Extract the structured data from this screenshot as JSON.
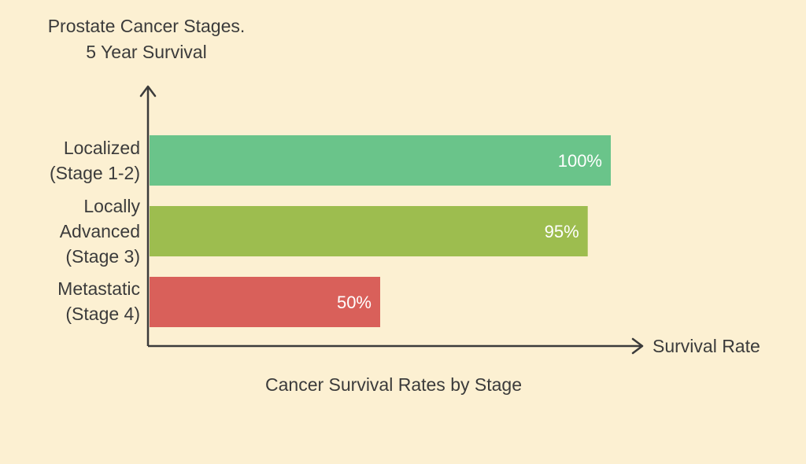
{
  "chart_data": {
    "type": "bar",
    "orientation": "horizontal",
    "title": [
      "Prostate Cancer Stages.",
      "5 Year Survival"
    ],
    "xlabel": "Survival Rate",
    "subtitle": "Cancer Survival Rates by Stage",
    "categories": [
      [
        "Localized",
        "(Stage 1-2)"
      ],
      [
        "Locally",
        "Advanced",
        "(Stage 3)"
      ],
      [
        "Metastatic",
        "(Stage 4)"
      ]
    ],
    "values": [
      100,
      95,
      50
    ],
    "value_labels": [
      "100%",
      "95%",
      "50%"
    ],
    "colors": [
      "#6ac48a",
      "#9dbd4f",
      "#d9605a"
    ],
    "xlim": [
      0,
      100
    ],
    "grid": false,
    "legend": "none"
  }
}
